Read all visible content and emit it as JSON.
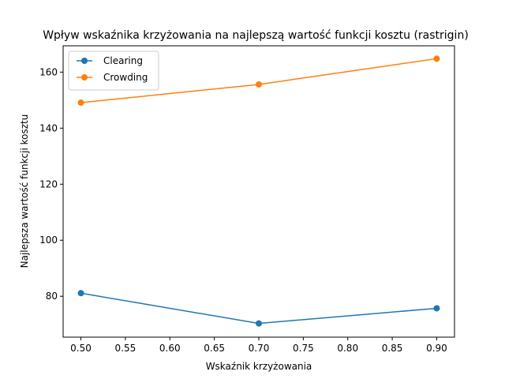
{
  "chart_data": {
    "type": "line",
    "title": "Wpływ wskaźnika krzyżowania na najlepszą wartość funkcji kosztu (rastrigin)",
    "xlabel": "Wskaźnik krzyżowania",
    "ylabel": "Najlepsza wartość funkcji kosztu",
    "x": [
      0.5,
      0.7,
      0.9
    ],
    "xlim": [
      0.48,
      0.92
    ],
    "ylim": [
      65.4,
      169.4
    ],
    "xticks": [
      0.5,
      0.55,
      0.6,
      0.65,
      0.7,
      0.75,
      0.8,
      0.85,
      0.9
    ],
    "xtick_labels": [
      "0.50",
      "0.55",
      "0.60",
      "0.65",
      "0.70",
      "0.75",
      "0.80",
      "0.85",
      "0.90"
    ],
    "yticks": [
      80,
      100,
      120,
      140,
      160
    ],
    "ytick_labels": [
      "80",
      "100",
      "120",
      "140",
      "160"
    ],
    "grid": false,
    "legend_position": "upper-left",
    "series": [
      {
        "name": "Clearing",
        "values": [
          81.1,
          70.3,
          75.7
        ],
        "color": "#1f77b4",
        "marker": "circle"
      },
      {
        "name": "Crowding",
        "values": [
          149.1,
          155.6,
          164.8
        ],
        "color": "#ff7f0e",
        "marker": "circle"
      }
    ]
  }
}
